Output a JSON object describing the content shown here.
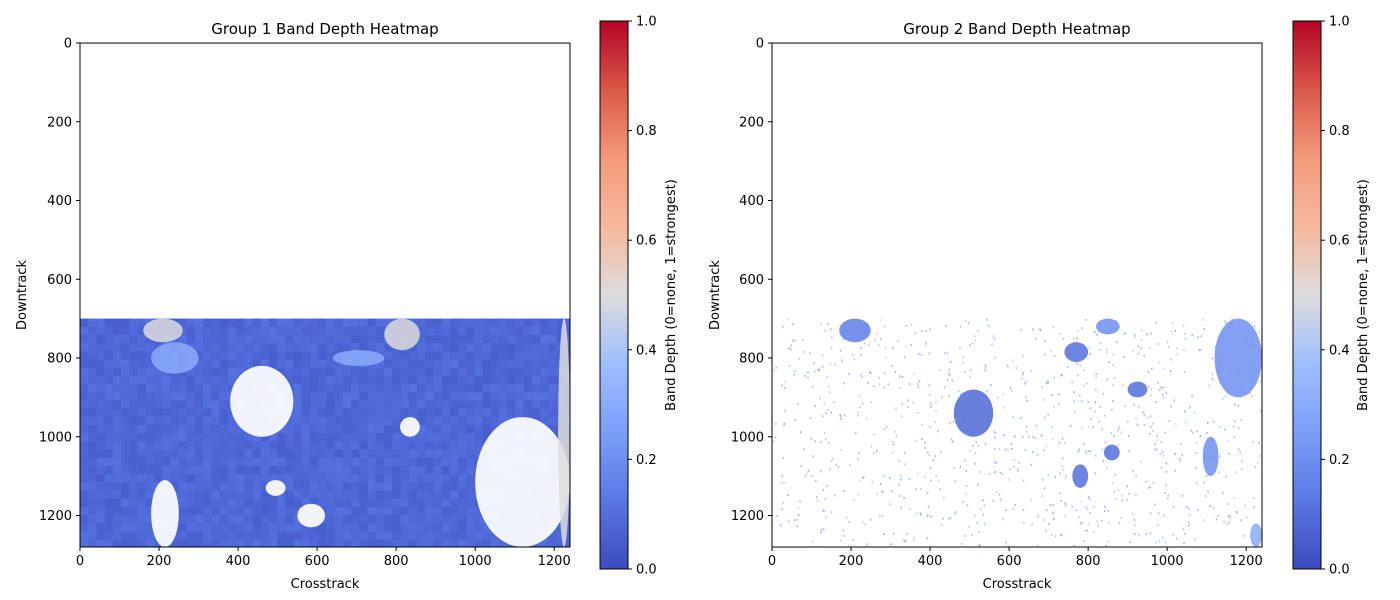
{
  "chart_data": [
    {
      "type": "heatmap",
      "title": "Group 1 Band Depth Heatmap",
      "xlabel": "Crosstrack",
      "ylabel": "Downtrack",
      "xlim": [
        0,
        1240
      ],
      "ylim": [
        1280,
        0
      ],
      "xticks": [
        0,
        200,
        400,
        600,
        800,
        1000,
        1200
      ],
      "yticks": [
        0,
        200,
        400,
        600,
        800,
        1000,
        1200
      ],
      "colormap": "coolwarm",
      "data_rows": [
        700,
        1280
      ],
      "no_data_rows": [
        0,
        700
      ],
      "dominant_value": 0.08,
      "regions": [
        {
          "kind": "no-data",
          "x": [
            0,
            1240
          ],
          "y": [
            0,
            700
          ]
        },
        {
          "kind": "no-data",
          "x": [
            380,
            540
          ],
          "y": [
            820,
            1000
          ]
        },
        {
          "kind": "no-data",
          "x": [
            180,
            250
          ],
          "y": [
            1110,
            1280
          ]
        },
        {
          "kind": "no-data",
          "x": [
            550,
            620
          ],
          "y": [
            1170,
            1230
          ]
        },
        {
          "kind": "no-data",
          "x": [
            470,
            520
          ],
          "y": [
            1110,
            1150
          ]
        },
        {
          "kind": "no-data",
          "x": [
            810,
            860
          ],
          "y": [
            950,
            1000
          ]
        },
        {
          "kind": "no-data",
          "x": [
            1000,
            1240
          ],
          "y": [
            950,
            1280
          ]
        },
        {
          "kind": "value",
          "v": 0.5,
          "x": [
            160,
            260
          ],
          "y": [
            700,
            760
          ]
        },
        {
          "kind": "value",
          "v": 0.5,
          "x": [
            770,
            860
          ],
          "y": [
            700,
            780
          ]
        },
        {
          "kind": "value",
          "v": 0.5,
          "x": [
            1210,
            1240
          ],
          "y": [
            700,
            1280
          ]
        },
        {
          "kind": "value",
          "v": 0.3,
          "x": [
            180,
            300
          ],
          "y": [
            760,
            840
          ]
        },
        {
          "kind": "value",
          "v": 0.3,
          "x": [
            640,
            770
          ],
          "y": [
            780,
            820
          ]
        }
      ],
      "colorbar": {
        "label": "Band Depth (0=none, 1=strongest)",
        "range": [
          0,
          1
        ],
        "ticks": [
          "0.0",
          "0.2",
          "0.4",
          "0.6",
          "0.8",
          "1.0"
        ]
      }
    },
    {
      "type": "heatmap",
      "title": "Group 2 Band Depth Heatmap",
      "xlabel": "Crosstrack",
      "ylabel": "Downtrack",
      "xlim": [
        0,
        1240
      ],
      "ylim": [
        1280,
        0
      ],
      "xticks": [
        0,
        200,
        400,
        600,
        800,
        1000,
        1200
      ],
      "yticks": [
        0,
        200,
        400,
        600,
        800,
        1000,
        1200
      ],
      "colormap": "coolwarm",
      "data_rows": [
        700,
        1280
      ],
      "no_data_rows": [
        0,
        700
      ],
      "dominant_value": null,
      "regions": [
        {
          "kind": "value",
          "v": 0.15,
          "x": [
            170,
            250
          ],
          "y": [
            700,
            760
          ]
        },
        {
          "kind": "value",
          "v": 0.2,
          "x": [
            820,
            880
          ],
          "y": [
            700,
            740
          ]
        },
        {
          "kind": "value",
          "v": 0.1,
          "x": [
            740,
            800
          ],
          "y": [
            760,
            810
          ]
        },
        {
          "kind": "value",
          "v": 0.08,
          "x": [
            460,
            560
          ],
          "y": [
            880,
            1000
          ]
        },
        {
          "kind": "value",
          "v": 0.1,
          "x": [
            900,
            950
          ],
          "y": [
            860,
            900
          ]
        },
        {
          "kind": "value",
          "v": 0.2,
          "x": [
            1120,
            1240
          ],
          "y": [
            700,
            900
          ]
        },
        {
          "kind": "value",
          "v": 0.2,
          "x": [
            1090,
            1130
          ],
          "y": [
            1000,
            1100
          ]
        },
        {
          "kind": "value",
          "v": 0.3,
          "x": [
            1210,
            1240
          ],
          "y": [
            1220,
            1280
          ]
        },
        {
          "kind": "value",
          "v": 0.1,
          "x": [
            760,
            800
          ],
          "y": [
            1070,
            1130
          ]
        },
        {
          "kind": "value",
          "v": 0.1,
          "x": [
            840,
            880
          ],
          "y": [
            1020,
            1060
          ]
        }
      ],
      "colorbar": {
        "label": "Band Depth (0=none, 1=strongest)",
        "range": [
          0,
          1
        ],
        "ticks": [
          "0.0",
          "0.2",
          "0.4",
          "0.6",
          "0.8",
          "1.0"
        ]
      }
    }
  ]
}
